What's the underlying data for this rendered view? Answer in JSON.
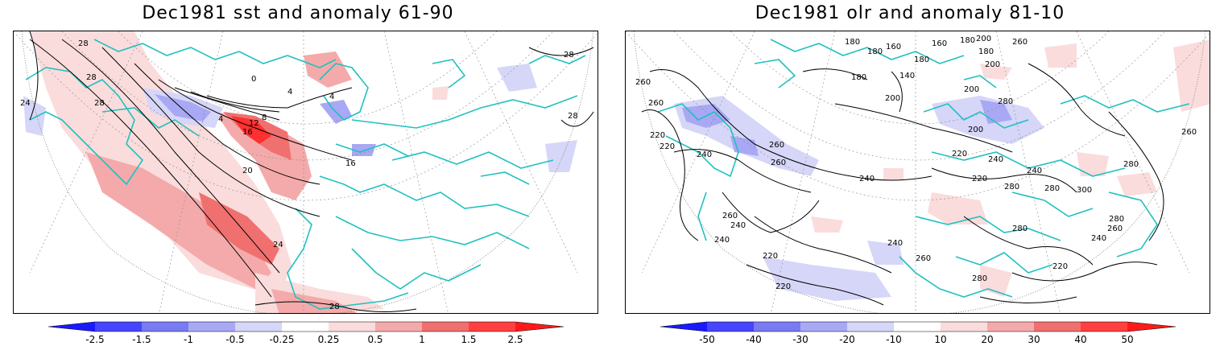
{
  "panels": [
    {
      "title": "Dec1981 sst and anomaly 61-90",
      "colorbar_labels": [
        "-2.5",
        "-1.5",
        "-1",
        "-0.5",
        "-0.25",
        "0.25",
        "0.5",
        "1",
        "1.5",
        "2.5"
      ],
      "contour_labels": [
        "28",
        "28",
        "24",
        "28",
        "0",
        "4",
        "4",
        "4",
        "8",
        "12",
        "16",
        "16",
        "20",
        "24",
        "28",
        "28",
        "28"
      ]
    },
    {
      "title": "Dec1981 olr and anomaly 81-10",
      "colorbar_labels": [
        "-50",
        "-40",
        "-30",
        "-20",
        "-10",
        "10",
        "20",
        "30",
        "40",
        "50"
      ],
      "contour_labels": [
        "180",
        "160",
        "160",
        "180",
        "200",
        "180",
        "260",
        "180",
        "140",
        "180",
        "200",
        "200",
        "260",
        "260",
        "220",
        "220",
        "240",
        "260",
        "200",
        "220",
        "240",
        "240",
        "260",
        "220",
        "240",
        "280",
        "280",
        "260",
        "260",
        "240",
        "240",
        "220",
        "220",
        "240",
        "280",
        "280",
        "300",
        "280",
        "260",
        "240",
        "220",
        "280",
        "260",
        "280",
        "200",
        "180"
      ]
    }
  ],
  "colors": {
    "coast": "#22c0c0",
    "neg_strong": "#2a2aff",
    "neg_mid": "#6e6ef0",
    "neg_light": "#a8a8f4",
    "neg_faint": "#d6d6f8",
    "pos_faint": "#fadcdc",
    "pos_light": "#f4aaaa",
    "pos_mid": "#f07070",
    "pos_strong": "#ff3030"
  }
}
